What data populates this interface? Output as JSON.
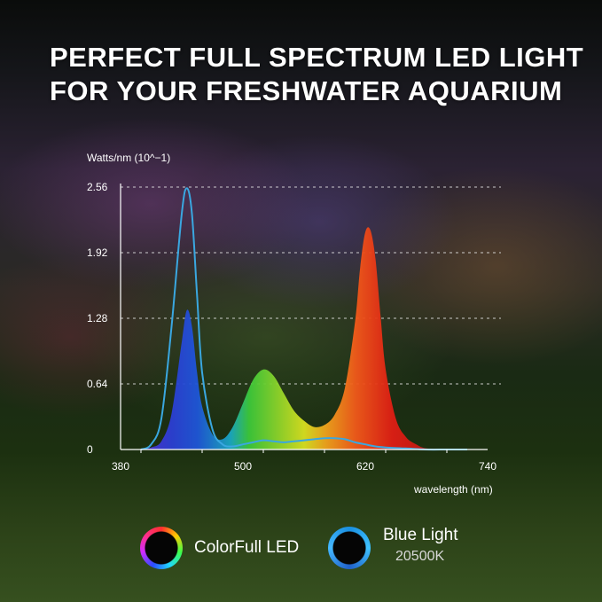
{
  "headline": "PERFECT FULL SPECTRUM LED LIGHT\nFOR YOUR FRESHWATER AQUARIUM",
  "chart_data": {
    "type": "area",
    "title": "",
    "xlabel": "wavelength (nm)",
    "ylabel": "Watts/nm (10^−1)",
    "xlim": [
      380,
      740
    ],
    "ylim": [
      0,
      2.56
    ],
    "x_ticks": [
      "380",
      "500",
      "620",
      "740"
    ],
    "y_ticks": [
      "0",
      "0.64",
      "1.28",
      "1.92",
      "2.56"
    ],
    "grid": "dashed horizontal at y ticks",
    "series": [
      {
        "name": "ColorFull LED",
        "x": [
          400,
          410,
          420,
          430,
          440,
          445,
          450,
          455,
          460,
          470,
          480,
          490,
          500,
          510,
          520,
          530,
          540,
          550,
          560,
          570,
          580,
          590,
          600,
          610,
          615,
          620,
          625,
          630,
          635,
          640,
          650,
          660,
          670,
          680,
          700
        ],
        "y": [
          0.0,
          0.02,
          0.08,
          0.35,
          1.05,
          1.36,
          1.2,
          0.75,
          0.42,
          0.15,
          0.1,
          0.22,
          0.45,
          0.68,
          0.78,
          0.72,
          0.55,
          0.38,
          0.28,
          0.22,
          0.24,
          0.34,
          0.6,
          1.25,
          1.78,
          2.12,
          2.14,
          1.86,
          1.3,
          0.78,
          0.3,
          0.12,
          0.05,
          0.01,
          0.0
        ]
      },
      {
        "name": "Blue Light",
        "label": "20500K",
        "x": [
          400,
          410,
          420,
          430,
          440,
          445,
          450,
          455,
          460,
          470,
          480,
          490,
          500,
          510,
          520,
          530,
          540,
          550,
          560,
          570,
          580,
          590,
          600,
          610,
          620,
          630,
          640,
          660,
          680,
          700,
          720
        ],
        "y": [
          0.0,
          0.05,
          0.3,
          1.2,
          2.3,
          2.55,
          2.3,
          1.5,
          0.75,
          0.2,
          0.05,
          0.03,
          0.05,
          0.07,
          0.09,
          0.08,
          0.07,
          0.08,
          0.09,
          0.1,
          0.11,
          0.11,
          0.1,
          0.07,
          0.05,
          0.03,
          0.02,
          0.01,
          0.0,
          0.0,
          0.0
        ]
      }
    ],
    "legend": "bottom-center",
    "colors": {
      "blue_line": "#3aa7e0",
      "axis": "#ffffff",
      "grid": "#e6e6e6"
    }
  }
}
